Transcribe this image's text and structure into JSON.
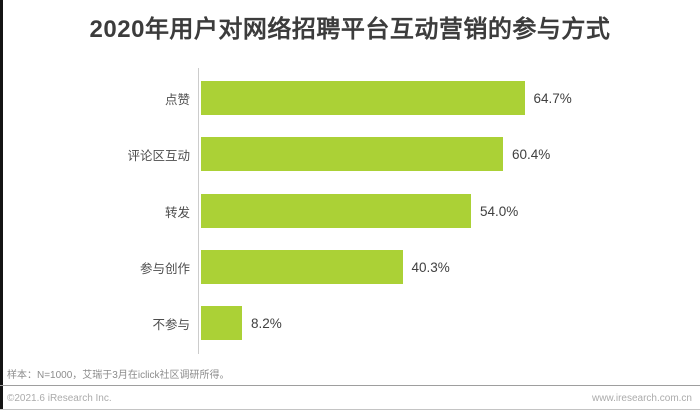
{
  "page": {
    "title": "2020年用户对网络招聘平台互动营销的参与方式",
    "note": "样本：N=1000，艾瑞于3月在iclick社区调研所得。",
    "footer_left": "©2021.6 iResearch Inc.",
    "footer_right": "www.iresearch.com.cn"
  },
  "colors": {
    "bar": "#abd136",
    "title_text": "#3c3c3c",
    "axis_line": "#cccccc",
    "note_text": "#8c8c8c",
    "footer_text": "#ababab",
    "left_edge": "#141414"
  },
  "chart_data": {
    "type": "bar",
    "orientation": "horizontal",
    "title": "2020年用户对网络招聘平台互动营销的参与方式",
    "categories": [
      "点赞",
      "评论区互动",
      "转发",
      "参与创作",
      "不参与"
    ],
    "values": [
      64.7,
      60.4,
      54.0,
      40.3,
      8.2
    ],
    "value_labels": [
      "64.7%",
      "60.4%",
      "54.0%",
      "40.3%",
      "8.2%"
    ],
    "unit": "%",
    "xlim": [
      0,
      100
    ],
    "grid": false,
    "legend": false,
    "value_label_position": "end-of-bar"
  }
}
